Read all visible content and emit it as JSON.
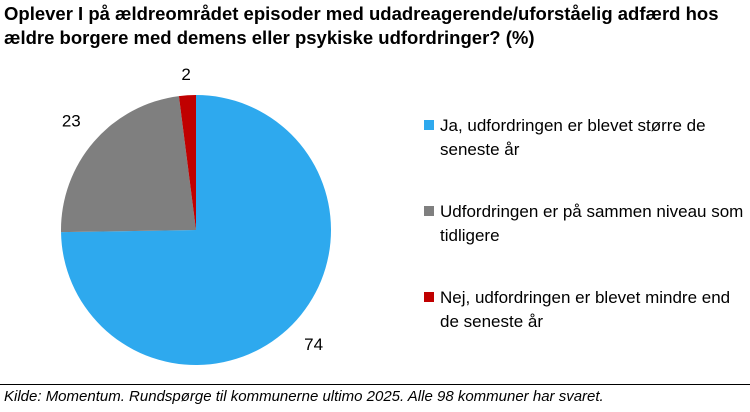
{
  "chart_data": {
    "type": "pie",
    "title": "Oplever I på ældreområdet episoder med udadreagerende/uforståelig adfærd hos ældre borgere med demens eller psykiske udfordringer? (%)",
    "categories": [
      "Ja, udfordringen er blevet større de seneste år",
      "Udfordringen er på sammen niveau som tidligere",
      "Nej, udfordringen er blevet mindre end de seneste år"
    ],
    "values": [
      74,
      23,
      2
    ],
    "data_labels": [
      "74",
      "23",
      "2"
    ],
    "colors": [
      "#2EA9EE",
      "#7F7F7F",
      "#C00000"
    ],
    "legend_position": "right",
    "start_angle_deg": 0,
    "direction": "clockwise"
  },
  "legend": {
    "items": [
      {
        "label": "Ja, udfordringen er blevet større de seneste år",
        "color": "#2EA9EE"
      },
      {
        "label": "Udfordringen er på sammen niveau som tidligere",
        "color": "#7F7F7F"
      },
      {
        "label": "Nej, udfordringen er blevet mindre end de seneste år",
        "color": "#C00000"
      }
    ]
  },
  "source": "Kilde: Momentum. Rundspørge til kommunerne ultimo 2025. Alle 98 kommuner har svaret."
}
